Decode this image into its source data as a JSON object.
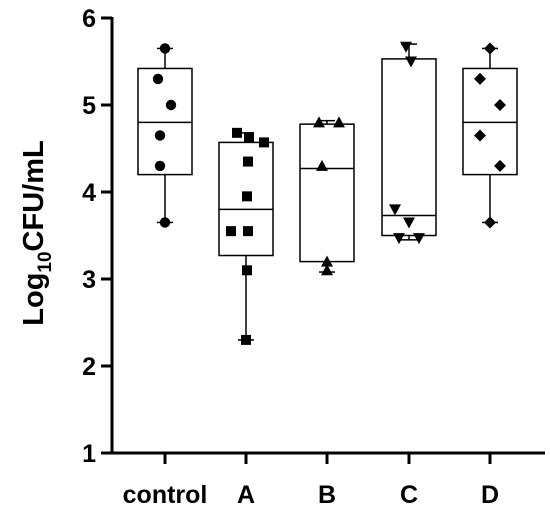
{
  "chart_data": {
    "type": "box",
    "title": "",
    "ylabel": {
      "prefix": "Log",
      "subscript": "10",
      "suffix": "CFU/mL"
    },
    "xlabel": "",
    "ylim": [
      1,
      6
    ],
    "yticks": [
      "1",
      "2",
      "3",
      "4",
      "5",
      "6"
    ],
    "grid": false,
    "legend": "none",
    "categories": [
      "control",
      "A",
      "B",
      "C",
      "D"
    ],
    "groups": [
      {
        "category": "control",
        "marker": "circle",
        "points": [
          5.65,
          5.3,
          5.0,
          4.65,
          4.3,
          3.65
        ],
        "min": 3.65,
        "q1": 4.2,
        "median": 4.8,
        "q3": 5.42,
        "max": 5.65
      },
      {
        "category": "A",
        "marker": "square",
        "points": [
          4.68,
          4.63,
          4.57,
          4.35,
          3.95,
          3.55,
          3.55,
          3.1,
          2.3
        ],
        "min": 2.3,
        "q1": 3.27,
        "median": 3.8,
        "q3": 4.57,
        "max": 4.68
      },
      {
        "category": "B",
        "marker": "triangle-up",
        "points": [
          4.8,
          4.8,
          4.3,
          3.2,
          3.1
        ],
        "min": 3.08,
        "q1": 3.2,
        "median": 4.27,
        "q3": 4.78,
        "max": 4.82
      },
      {
        "category": "C",
        "marker": "triangle-down",
        "points": [
          5.67,
          5.5,
          3.8,
          3.65,
          3.47,
          3.47
        ],
        "min": 3.45,
        "q1": 3.5,
        "median": 3.73,
        "q3": 5.53,
        "max": 5.7
      },
      {
        "category": "D",
        "marker": "diamond",
        "points": [
          5.65,
          5.3,
          5.0,
          4.65,
          4.3,
          3.65
        ],
        "min": 3.65,
        "q1": 4.2,
        "median": 4.8,
        "q3": 5.42,
        "max": 5.65
      }
    ]
  }
}
